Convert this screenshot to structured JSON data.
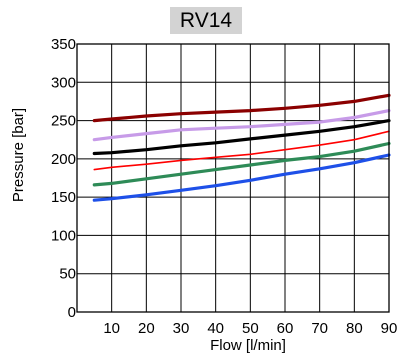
{
  "chart_data": {
    "type": "line",
    "title": "RV14",
    "xlabel": "Flow [l/min]",
    "ylabel": "Pressure [bar]",
    "xlim": [
      0,
      90
    ],
    "ylim": [
      0,
      350
    ],
    "xticks": [
      10,
      20,
      30,
      40,
      50,
      60,
      70,
      80,
      90
    ],
    "yticks": [
      0,
      50,
      100,
      150,
      200,
      250,
      300,
      350
    ],
    "grid": true,
    "legend": "none",
    "x": [
      5,
      10,
      20,
      30,
      40,
      50,
      60,
      70,
      80,
      90
    ],
    "series": [
      {
        "color": "#8b0000",
        "width": 3.2,
        "values": [
          250,
          252,
          256,
          259,
          261,
          263,
          266,
          270,
          275,
          283
        ]
      },
      {
        "color": "#c79be8",
        "width": 3.2,
        "values": [
          225,
          228,
          233,
          238,
          240,
          242,
          245,
          248,
          254,
          263
        ]
      },
      {
        "color": "#000000",
        "width": 3.2,
        "values": [
          207,
          208,
          212,
          217,
          221,
          226,
          231,
          236,
          242,
          250
        ]
      },
      {
        "color": "#ff0000",
        "width": 1.6,
        "values": [
          186,
          189,
          193,
          198,
          202,
          206,
          212,
          218,
          225,
          236
        ]
      },
      {
        "color": "#2e8b57",
        "width": 3.2,
        "values": [
          166,
          168,
          174,
          180,
          186,
          192,
          198,
          203,
          210,
          220
        ]
      },
      {
        "color": "#1e50e8",
        "width": 3.2,
        "values": [
          146,
          148,
          153,
          159,
          165,
          172,
          180,
          187,
          195,
          205
        ]
      }
    ]
  }
}
